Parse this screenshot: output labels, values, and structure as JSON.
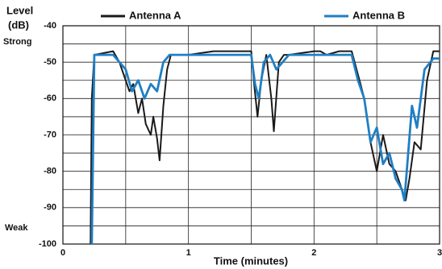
{
  "chart_data": {
    "type": "line",
    "y_label_lines": [
      "Level",
      "(dB)"
    ],
    "y_top_note": "Strong",
    "y_bottom_note": "Weak",
    "x_label": "Time (minutes)",
    "xlim": [
      0,
      3
    ],
    "xticks": [
      0,
      1,
      2,
      3
    ],
    "x_minor_ticks": [
      0.5,
      1.5,
      2.5
    ],
    "ylim": [
      -100,
      -40
    ],
    "yticks": [
      -40,
      -50,
      -60,
      -70,
      -80,
      -90,
      -100
    ],
    "y_minor_ticks": [
      -45,
      -55,
      -65,
      -75,
      -85,
      -95
    ],
    "grid": true,
    "series": [
      {
        "name": "Antenna A",
        "color": "#1a1a1a",
        "x": [
          0.22,
          0.23,
          0.25,
          0.4,
          0.45,
          0.5,
          0.53,
          0.56,
          0.6,
          0.63,
          0.66,
          0.7,
          0.72,
          0.75,
          0.77,
          0.8,
          0.83,
          0.86,
          1.0,
          1.2,
          1.3,
          1.5,
          1.52,
          1.55,
          1.58,
          1.62,
          1.66,
          1.68,
          1.72,
          1.76,
          1.8,
          2.0,
          2.05,
          2.1,
          2.2,
          2.3,
          2.37,
          2.4,
          2.45,
          2.5,
          2.55,
          2.6,
          2.65,
          2.7,
          2.73,
          2.76,
          2.8,
          2.85,
          2.9,
          2.95,
          3.0
        ],
        "values": [
          -100,
          -60,
          -48,
          -47,
          -50,
          -55,
          -58,
          -56,
          -64,
          -60,
          -67,
          -70,
          -65,
          -71,
          -77,
          -62,
          -52,
          -48,
          -48,
          -47,
          -47,
          -47,
          -55,
          -65,
          -55,
          -48,
          -60,
          -69,
          -50,
          -48,
          -48,
          -47,
          -47,
          -48,
          -47,
          -47,
          -56,
          -60,
          -72,
          -80,
          -70,
          -78,
          -80,
          -85,
          -88,
          -82,
          -72,
          -74,
          -55,
          -47,
          -47
        ]
      },
      {
        "name": "Antenna B",
        "color": "#1f7fc4",
        "x": [
          0.23,
          0.25,
          0.4,
          0.5,
          0.55,
          0.6,
          0.65,
          0.7,
          0.75,
          0.8,
          0.85,
          1.0,
          1.5,
          1.53,
          1.56,
          1.6,
          1.65,
          1.7,
          1.8,
          2.0,
          2.3,
          2.35,
          2.4,
          2.45,
          2.5,
          2.55,
          2.6,
          2.65,
          2.7,
          2.72,
          2.78,
          2.82,
          2.88,
          2.95,
          3.0
        ],
        "values": [
          -100,
          -48,
          -48,
          -52,
          -58,
          -55,
          -60,
          -56,
          -58,
          -50,
          -48,
          -48,
          -48,
          -56,
          -60,
          -50,
          -48,
          -52,
          -48,
          -48,
          -48,
          -55,
          -60,
          -72,
          -68,
          -78,
          -75,
          -82,
          -85,
          -88,
          -62,
          -68,
          -52,
          -49,
          -49
        ]
      }
    ]
  }
}
